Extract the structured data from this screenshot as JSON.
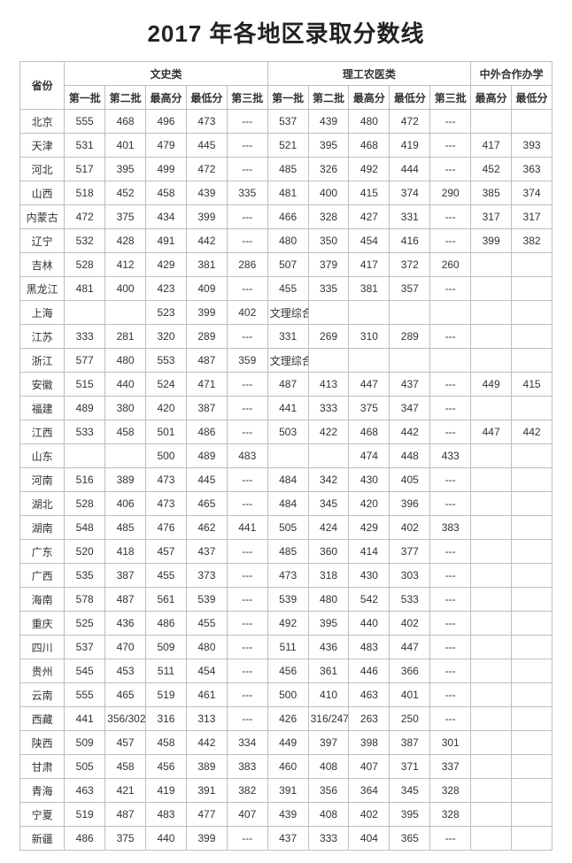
{
  "title": "2017 年各地区录取分数线",
  "headers": {
    "province": "省份",
    "group_liberal": "文史类",
    "group_science": "理工农医类",
    "group_coop": "中外合作办学",
    "sub": {
      "b1": "第一批",
      "b2": "第二批",
      "max": "最高分",
      "min": "最低分",
      "b3": "第三批"
    }
  },
  "columns_order": [
    "lib_b1",
    "lib_b2",
    "lib_max",
    "lib_min",
    "lib_b3",
    "sci_b1",
    "sci_b2",
    "sci_max",
    "sci_min",
    "sci_b3",
    "coop_max",
    "coop_min"
  ],
  "rows": [
    {
      "prov": "北京",
      "lib_b1": "555",
      "lib_b2": "468",
      "lib_max": "496",
      "lib_min": "473",
      "lib_b3": "---",
      "sci_b1": "537",
      "sci_b2": "439",
      "sci_max": "480",
      "sci_min": "472",
      "sci_b3": "---",
      "coop_max": "",
      "coop_min": ""
    },
    {
      "prov": "天津",
      "lib_b1": "531",
      "lib_b2": "401",
      "lib_max": "479",
      "lib_min": "445",
      "lib_b3": "---",
      "sci_b1": "521",
      "sci_b2": "395",
      "sci_max": "468",
      "sci_min": "419",
      "sci_b3": "---",
      "coop_max": "417",
      "coop_min": "393"
    },
    {
      "prov": "河北",
      "lib_b1": "517",
      "lib_b2": "395",
      "lib_max": "499",
      "lib_min": "472",
      "lib_b3": "---",
      "sci_b1": "485",
      "sci_b2": "326",
      "sci_max": "492",
      "sci_min": "444",
      "sci_b3": "---",
      "coop_max": "452",
      "coop_min": "363"
    },
    {
      "prov": "山西",
      "lib_b1": "518",
      "lib_b2": "452",
      "lib_max": "458",
      "lib_min": "439",
      "lib_b3": "335",
      "sci_b1": "481",
      "sci_b2": "400",
      "sci_max": "415",
      "sci_min": "374",
      "sci_b3": "290",
      "coop_max": "385",
      "coop_min": "374"
    },
    {
      "prov": "内蒙古",
      "lib_b1": "472",
      "lib_b2": "375",
      "lib_max": "434",
      "lib_min": "399",
      "lib_b3": "---",
      "sci_b1": "466",
      "sci_b2": "328",
      "sci_max": "427",
      "sci_min": "331",
      "sci_b3": "---",
      "coop_max": "317",
      "coop_min": "317"
    },
    {
      "prov": "辽宁",
      "lib_b1": "532",
      "lib_b2": "428",
      "lib_max": "491",
      "lib_min": "442",
      "lib_b3": "---",
      "sci_b1": "480",
      "sci_b2": "350",
      "sci_max": "454",
      "sci_min": "416",
      "sci_b3": "---",
      "coop_max": "399",
      "coop_min": "382"
    },
    {
      "prov": "吉林",
      "lib_b1": "528",
      "lib_b2": "412",
      "lib_max": "429",
      "lib_min": "381",
      "lib_b3": "286",
      "sci_b1": "507",
      "sci_b2": "379",
      "sci_max": "417",
      "sci_min": "372",
      "sci_b3": "260",
      "coop_max": "",
      "coop_min": ""
    },
    {
      "prov": "黑龙江",
      "lib_b1": "481",
      "lib_b2": "400",
      "lib_max": "423",
      "lib_min": "409",
      "lib_b3": "---",
      "sci_b1": "455",
      "sci_b2": "335",
      "sci_max": "381",
      "sci_min": "357",
      "sci_b3": "---",
      "coop_max": "",
      "coop_min": ""
    },
    {
      "prov": "上海",
      "lib_b1": "",
      "lib_b2": "",
      "lib_max": "523",
      "lib_min": "399",
      "lib_b3": "402",
      "sci_b1": "文理综合",
      "sci_b2": "",
      "sci_max": "",
      "sci_min": "",
      "sci_b3": "",
      "coop_max": "",
      "coop_min": ""
    },
    {
      "prov": "江苏",
      "lib_b1": "333",
      "lib_b2": "281",
      "lib_max": "320",
      "lib_min": "289",
      "lib_b3": "---",
      "sci_b1": "331",
      "sci_b2": "269",
      "sci_max": "310",
      "sci_min": "289",
      "sci_b3": "---",
      "coop_max": "",
      "coop_min": ""
    },
    {
      "prov": "浙江",
      "lib_b1": "577",
      "lib_b2": "480",
      "lib_max": "553",
      "lib_min": "487",
      "lib_b3": "359",
      "sci_b1": "文理综合",
      "sci_b2": "",
      "sci_max": "",
      "sci_min": "",
      "sci_b3": "",
      "coop_max": "",
      "coop_min": ""
    },
    {
      "prov": "安徽",
      "lib_b1": "515",
      "lib_b2": "440",
      "lib_max": "524",
      "lib_min": "471",
      "lib_b3": "---",
      "sci_b1": "487",
      "sci_b2": "413",
      "sci_max": "447",
      "sci_min": "437",
      "sci_b3": "---",
      "coop_max": "449",
      "coop_min": "415"
    },
    {
      "prov": "福建",
      "lib_b1": "489",
      "lib_b2": "380",
      "lib_max": "420",
      "lib_min": "387",
      "lib_b3": "---",
      "sci_b1": "441",
      "sci_b2": "333",
      "sci_max": "375",
      "sci_min": "347",
      "sci_b3": "---",
      "coop_max": "",
      "coop_min": ""
    },
    {
      "prov": "江西",
      "lib_b1": "533",
      "lib_b2": "458",
      "lib_max": "501",
      "lib_min": "486",
      "lib_b3": "---",
      "sci_b1": "503",
      "sci_b2": "422",
      "sci_max": "468",
      "sci_min": "442",
      "sci_b3": "---",
      "coop_max": "447",
      "coop_min": "442"
    },
    {
      "prov": "山东",
      "lib_b1": "",
      "lib_b2": "",
      "lib_max": "500",
      "lib_min": "489",
      "lib_b3": "483",
      "sci_b1": "",
      "sci_b2": "",
      "sci_max": "474",
      "sci_min": "448",
      "sci_b3": "433",
      "coop_max": "",
      "coop_min": ""
    },
    {
      "prov": "河南",
      "lib_b1": "516",
      "lib_b2": "389",
      "lib_max": "473",
      "lib_min": "445",
      "lib_b3": "---",
      "sci_b1": "484",
      "sci_b2": "342",
      "sci_max": "430",
      "sci_min": "405",
      "sci_b3": "---",
      "coop_max": "",
      "coop_min": ""
    },
    {
      "prov": "湖北",
      "lib_b1": "528",
      "lib_b2": "406",
      "lib_max": "473",
      "lib_min": "465",
      "lib_b3": "---",
      "sci_b1": "484",
      "sci_b2": "345",
      "sci_max": "420",
      "sci_min": "396",
      "sci_b3": "---",
      "coop_max": "",
      "coop_min": ""
    },
    {
      "prov": "湖南",
      "lib_b1": "548",
      "lib_b2": "485",
      "lib_max": "476",
      "lib_min": "462",
      "lib_b3": "441",
      "sci_b1": "505",
      "sci_b2": "424",
      "sci_max": "429",
      "sci_min": "402",
      "sci_b3": "383",
      "coop_max": "",
      "coop_min": ""
    },
    {
      "prov": "广东",
      "lib_b1": "520",
      "lib_b2": "418",
      "lib_max": "457",
      "lib_min": "437",
      "lib_b3": "---",
      "sci_b1": "485",
      "sci_b2": "360",
      "sci_max": "414",
      "sci_min": "377",
      "sci_b3": "---",
      "coop_max": "",
      "coop_min": ""
    },
    {
      "prov": "广西",
      "lib_b1": "535",
      "lib_b2": "387",
      "lib_max": "455",
      "lib_min": "373",
      "lib_b3": "---",
      "sci_b1": "473",
      "sci_b2": "318",
      "sci_max": "430",
      "sci_min": "303",
      "sci_b3": "---",
      "coop_max": "",
      "coop_min": ""
    },
    {
      "prov": "海南",
      "lib_b1": "578",
      "lib_b2": "487",
      "lib_max": "561",
      "lib_min": "539",
      "lib_b3": "---",
      "sci_b1": "539",
      "sci_b2": "480",
      "sci_max": "542",
      "sci_min": "533",
      "sci_b3": "---",
      "coop_max": "",
      "coop_min": ""
    },
    {
      "prov": "重庆",
      "lib_b1": "525",
      "lib_b2": "436",
      "lib_max": "486",
      "lib_min": "455",
      "lib_b3": "---",
      "sci_b1": "492",
      "sci_b2": "395",
      "sci_max": "440",
      "sci_min": "402",
      "sci_b3": "---",
      "coop_max": "",
      "coop_min": ""
    },
    {
      "prov": "四川",
      "lib_b1": "537",
      "lib_b2": "470",
      "lib_max": "509",
      "lib_min": "480",
      "lib_b3": "---",
      "sci_b1": "511",
      "sci_b2": "436",
      "sci_max": "483",
      "sci_min": "447",
      "sci_b3": "---",
      "coop_max": "",
      "coop_min": ""
    },
    {
      "prov": "贵州",
      "lib_b1": "545",
      "lib_b2": "453",
      "lib_max": "511",
      "lib_min": "454",
      "lib_b3": "---",
      "sci_b1": "456",
      "sci_b2": "361",
      "sci_max": "446",
      "sci_min": "366",
      "sci_b3": "---",
      "coop_max": "",
      "coop_min": ""
    },
    {
      "prov": "云南",
      "lib_b1": "555",
      "lib_b2": "465",
      "lib_max": "519",
      "lib_min": "461",
      "lib_b3": "---",
      "sci_b1": "500",
      "sci_b2": "410",
      "sci_max": "463",
      "sci_min": "401",
      "sci_b3": "---",
      "coop_max": "",
      "coop_min": ""
    },
    {
      "prov": "西藏",
      "lib_b1": "441",
      "lib_b2": "356/302",
      "lib_max": "316",
      "lib_min": "313",
      "lib_b3": "---",
      "sci_b1": "426",
      "sci_b2": "316/247",
      "sci_max": "263",
      "sci_min": "250",
      "sci_b3": "---",
      "coop_max": "",
      "coop_min": ""
    },
    {
      "prov": "陕西",
      "lib_b1": "509",
      "lib_b2": "457",
      "lib_max": "458",
      "lib_min": "442",
      "lib_b3": "334",
      "sci_b1": "449",
      "sci_b2": "397",
      "sci_max": "398",
      "sci_min": "387",
      "sci_b3": "301",
      "coop_max": "",
      "coop_min": ""
    },
    {
      "prov": "甘肃",
      "lib_b1": "505",
      "lib_b2": "458",
      "lib_max": "456",
      "lib_min": "389",
      "lib_b3": "383",
      "sci_b1": "460",
      "sci_b2": "408",
      "sci_max": "407",
      "sci_min": "371",
      "sci_b3": "337",
      "coop_max": "",
      "coop_min": ""
    },
    {
      "prov": "青海",
      "lib_b1": "463",
      "lib_b2": "421",
      "lib_max": "419",
      "lib_min": "391",
      "lib_b3": "382",
      "sci_b1": "391",
      "sci_b2": "356",
      "sci_max": "364",
      "sci_min": "345",
      "sci_b3": "328",
      "coop_max": "",
      "coop_min": ""
    },
    {
      "prov": "宁夏",
      "lib_b1": "519",
      "lib_b2": "487",
      "lib_max": "483",
      "lib_min": "477",
      "lib_b3": "407",
      "sci_b1": "439",
      "sci_b2": "408",
      "sci_max": "402",
      "sci_min": "395",
      "sci_b3": "328",
      "coop_max": "",
      "coop_min": ""
    },
    {
      "prov": "新疆",
      "lib_b1": "486",
      "lib_b2": "375",
      "lib_max": "440",
      "lib_min": "399",
      "lib_b3": "---",
      "sci_b1": "437",
      "sci_b2": "333",
      "sci_max": "404",
      "sci_min": "365",
      "sci_b3": "---",
      "coop_max": "",
      "coop_min": ""
    }
  ],
  "style": {
    "title_fontsize": 26,
    "cell_fontsize": 12,
    "border_color": "#bfbfbf",
    "text_color": "#333333",
    "background_color": "#ffffff"
  }
}
